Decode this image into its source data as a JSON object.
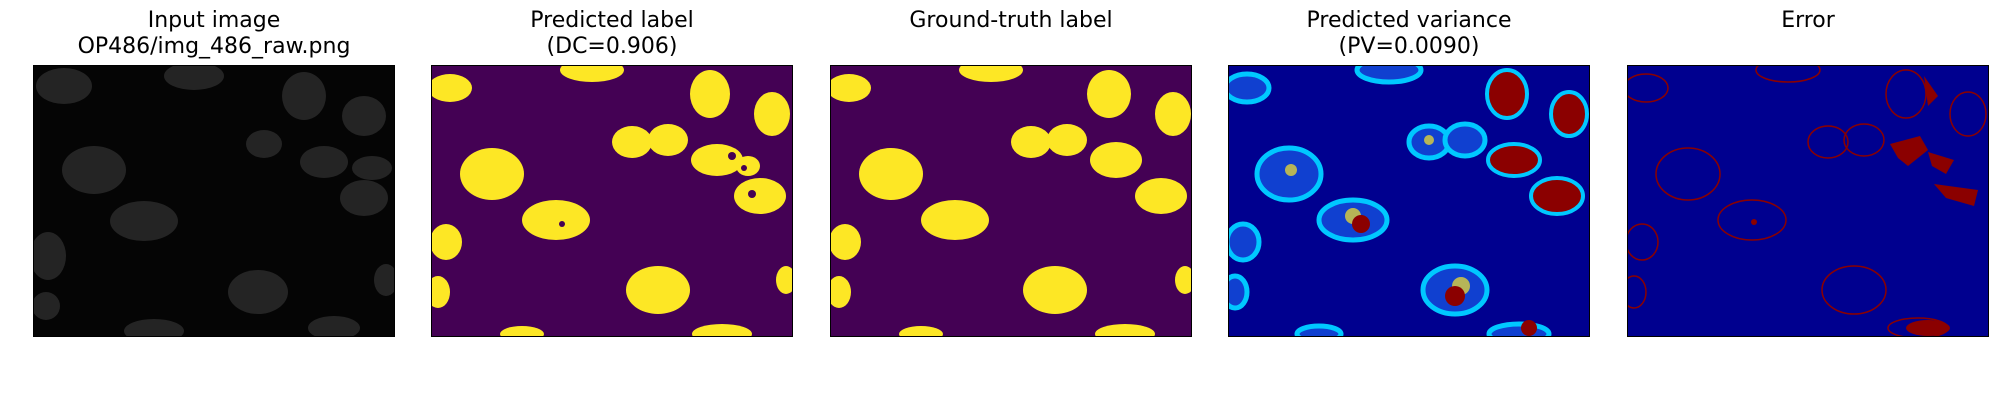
{
  "panels": [
    {
      "title_lines": [
        "Input image",
        "OP486/img_486_raw.png"
      ]
    },
    {
      "title_lines": [
        "Predicted label",
        "(DC=0.906)"
      ]
    },
    {
      "title_lines": [
        "",
        "Ground-truth label"
      ]
    },
    {
      "title_lines": [
        "Predicted variance",
        "(PV=0.0090)"
      ]
    },
    {
      "title_lines": [
        "",
        "Error"
      ]
    }
  ],
  "colors": {
    "raw_background": "#050505",
    "raw_nucleus": "#2a2a2a",
    "label_background": "#440154",
    "label_foreground": "#fde725",
    "variance_background": "#00008f",
    "variance_ring": "#00a0ff",
    "variance_high": "#8b0000",
    "variance_mid": "#fde725",
    "error_background": "#00008f",
    "error_mark": "#8b0000"
  }
}
